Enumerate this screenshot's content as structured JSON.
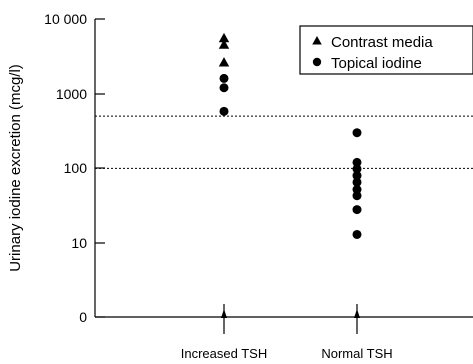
{
  "chart_data": {
    "type": "scatter",
    "ylabel": "Urinary iodine excretion (mcg/l)",
    "yscale": "log",
    "yticks": [
      {
        "value": 10000,
        "label": "10 000"
      },
      {
        "value": 1000,
        "label": "1000"
      },
      {
        "value": 100,
        "label": "100"
      },
      {
        "value": 10,
        "label": "10"
      },
      {
        "value": 1,
        "label": "0"
      }
    ],
    "categories": [
      "Increased TSH",
      "Normal TSH"
    ],
    "reference_lines": [
      500,
      100
    ],
    "legend": {
      "placement": "top-right"
    },
    "series": [
      {
        "name": "Contrast media",
        "marker": "triangle",
        "color": "#000000",
        "points": [
          {
            "category": "Increased TSH",
            "y": 5500
          },
          {
            "category": "Increased TSH",
            "y": 4500
          },
          {
            "category": "Increased TSH",
            "y": 2600
          }
        ]
      },
      {
        "name": "Topical iodine",
        "marker": "circle",
        "color": "#000000",
        "points": [
          {
            "category": "Increased TSH",
            "y": 1600
          },
          {
            "category": "Increased TSH",
            "y": 1200
          },
          {
            "category": "Increased TSH",
            "y": 580
          },
          {
            "category": "Normal TSH",
            "y": 300
          },
          {
            "category": "Normal TSH",
            "y": 120
          },
          {
            "category": "Normal TSH",
            "y": 98
          },
          {
            "category": "Normal TSH",
            "y": 80
          },
          {
            "category": "Normal TSH",
            "y": 65
          },
          {
            "category": "Normal TSH",
            "y": 52
          },
          {
            "category": "Normal TSH",
            "y": 43
          },
          {
            "category": "Normal TSH",
            "y": 28
          },
          {
            "category": "Normal TSH",
            "y": 13
          }
        ]
      }
    ]
  }
}
